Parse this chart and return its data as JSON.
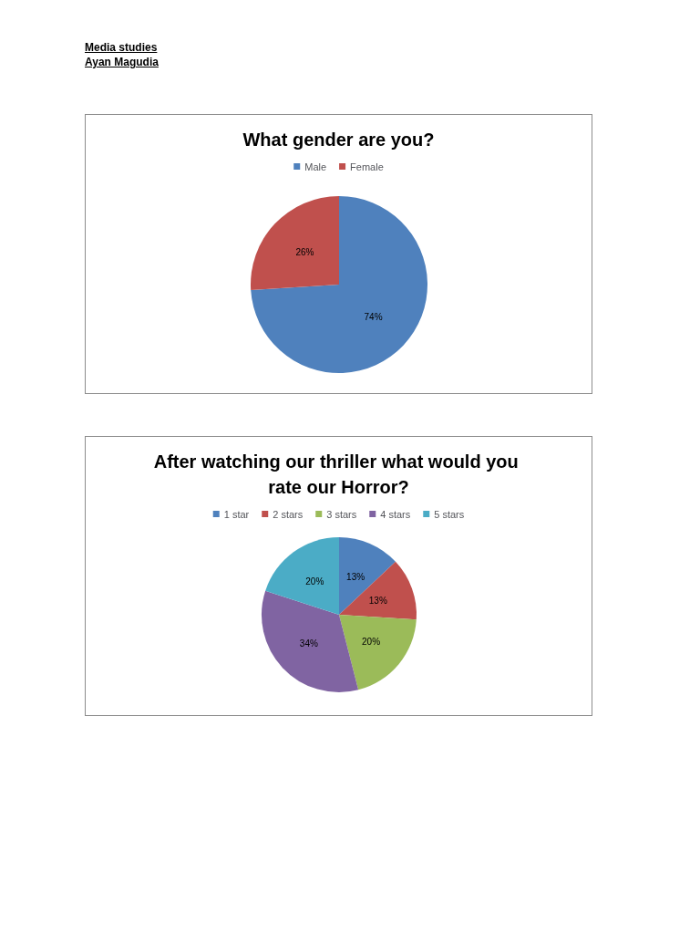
{
  "chart_data": [
    {
      "type": "pie",
      "title": "What gender are you?",
      "annotations": [
        "Media studies",
        "Ayan Magudia"
      ],
      "categories": [
        "Male",
        "Female"
      ],
      "values": [
        74,
        26
      ],
      "colors": [
        "#4f81bd",
        "#c0504d"
      ],
      "value_labels": [
        "74%",
        "26%"
      ],
      "legend": "top"
    },
    {
      "type": "pie",
      "title": "After watching our thriller what would you rate our Horror?",
      "categories": [
        "1 star",
        "2 stars",
        "3 stars",
        "4 stars",
        "5 stars"
      ],
      "values": [
        13,
        13,
        20,
        34,
        20
      ],
      "colors": [
        "#4f81bd",
        "#c0504d",
        "#9bbb59",
        "#8064a2",
        "#4bacc6"
      ],
      "value_labels": [
        "13%",
        "13%",
        "20%",
        "34%",
        "20%"
      ],
      "legend": "top"
    }
  ]
}
